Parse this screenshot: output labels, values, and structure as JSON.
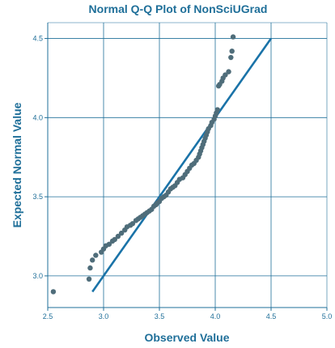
{
  "colors": {
    "axis": "#1f6f99",
    "grid": "#1f6f99",
    "text": "#1f6f99",
    "points": "#4f6d7a",
    "reference_line": "#1a73a8",
    "background": "#ffffff"
  },
  "chart_data": {
    "type": "scatter",
    "title": "Normal Q-Q Plot of NonSciUGrad",
    "xlabel": "Observed Value",
    "ylabel": "Expected Normal Value",
    "xlim": [
      2.5,
      5.0
    ],
    "ylim": [
      2.8,
      4.6
    ],
    "xticks": [
      "2.5",
      "3.0",
      "3.5",
      "4.0",
      "4.5",
      "5.0"
    ],
    "yticks": [
      "3.0",
      "3.5",
      "4.0",
      "4.5"
    ],
    "grid": true,
    "reference_line": {
      "x": [
        2.9,
        4.5
      ],
      "y": [
        2.9,
        4.5
      ]
    },
    "points": [
      [
        2.55,
        2.9
      ],
      [
        2.87,
        2.98
      ],
      [
        2.88,
        3.05
      ],
      [
        2.9,
        3.1
      ],
      [
        2.93,
        3.13
      ],
      [
        2.98,
        3.15
      ],
      [
        3.0,
        3.17
      ],
      [
        3.02,
        3.19
      ],
      [
        3.05,
        3.2
      ],
      [
        3.08,
        3.22
      ],
      [
        3.1,
        3.23
      ],
      [
        3.13,
        3.25
      ],
      [
        3.16,
        3.27
      ],
      [
        3.19,
        3.29
      ],
      [
        3.21,
        3.31
      ],
      [
        3.24,
        3.32
      ],
      [
        3.26,
        3.33
      ],
      [
        3.29,
        3.35
      ],
      [
        3.31,
        3.36
      ],
      [
        3.33,
        3.37
      ],
      [
        3.35,
        3.38
      ],
      [
        3.37,
        3.39
      ],
      [
        3.39,
        3.4
      ],
      [
        3.41,
        3.41
      ],
      [
        3.43,
        3.42
      ],
      [
        3.45,
        3.44
      ],
      [
        3.47,
        3.45
      ],
      [
        3.48,
        3.46
      ],
      [
        3.5,
        3.47
      ],
      [
        3.52,
        3.49
      ],
      [
        3.54,
        3.5
      ],
      [
        3.56,
        3.51
      ],
      [
        3.58,
        3.53
      ],
      [
        3.6,
        3.55
      ],
      [
        3.62,
        3.56
      ],
      [
        3.64,
        3.57
      ],
      [
        3.66,
        3.59
      ],
      [
        3.68,
        3.61
      ],
      [
        3.71,
        3.62
      ],
      [
        3.73,
        3.64
      ],
      [
        3.75,
        3.66
      ],
      [
        3.77,
        3.68
      ],
      [
        3.79,
        3.7
      ],
      [
        3.81,
        3.71
      ],
      [
        3.83,
        3.73
      ],
      [
        3.85,
        3.75
      ],
      [
        3.86,
        3.77
      ],
      [
        3.87,
        3.79
      ],
      [
        3.88,
        3.81
      ],
      [
        3.89,
        3.83
      ],
      [
        3.9,
        3.85
      ],
      [
        3.91,
        3.87
      ],
      [
        3.92,
        3.89
      ],
      [
        3.93,
        3.91
      ],
      [
        3.94,
        3.93
      ],
      [
        3.96,
        3.95
      ],
      [
        3.97,
        3.97
      ],
      [
        3.99,
        3.99
      ],
      [
        4.0,
        4.01
      ],
      [
        4.01,
        4.03
      ],
      [
        4.02,
        4.05
      ],
      [
        4.03,
        4.2
      ],
      [
        4.04,
        4.21
      ],
      [
        4.06,
        4.23
      ],
      [
        4.07,
        4.25
      ],
      [
        4.09,
        4.27
      ],
      [
        4.12,
        4.29
      ],
      [
        4.14,
        4.38
      ],
      [
        4.15,
        4.42
      ],
      [
        4.16,
        4.51
      ]
    ]
  }
}
